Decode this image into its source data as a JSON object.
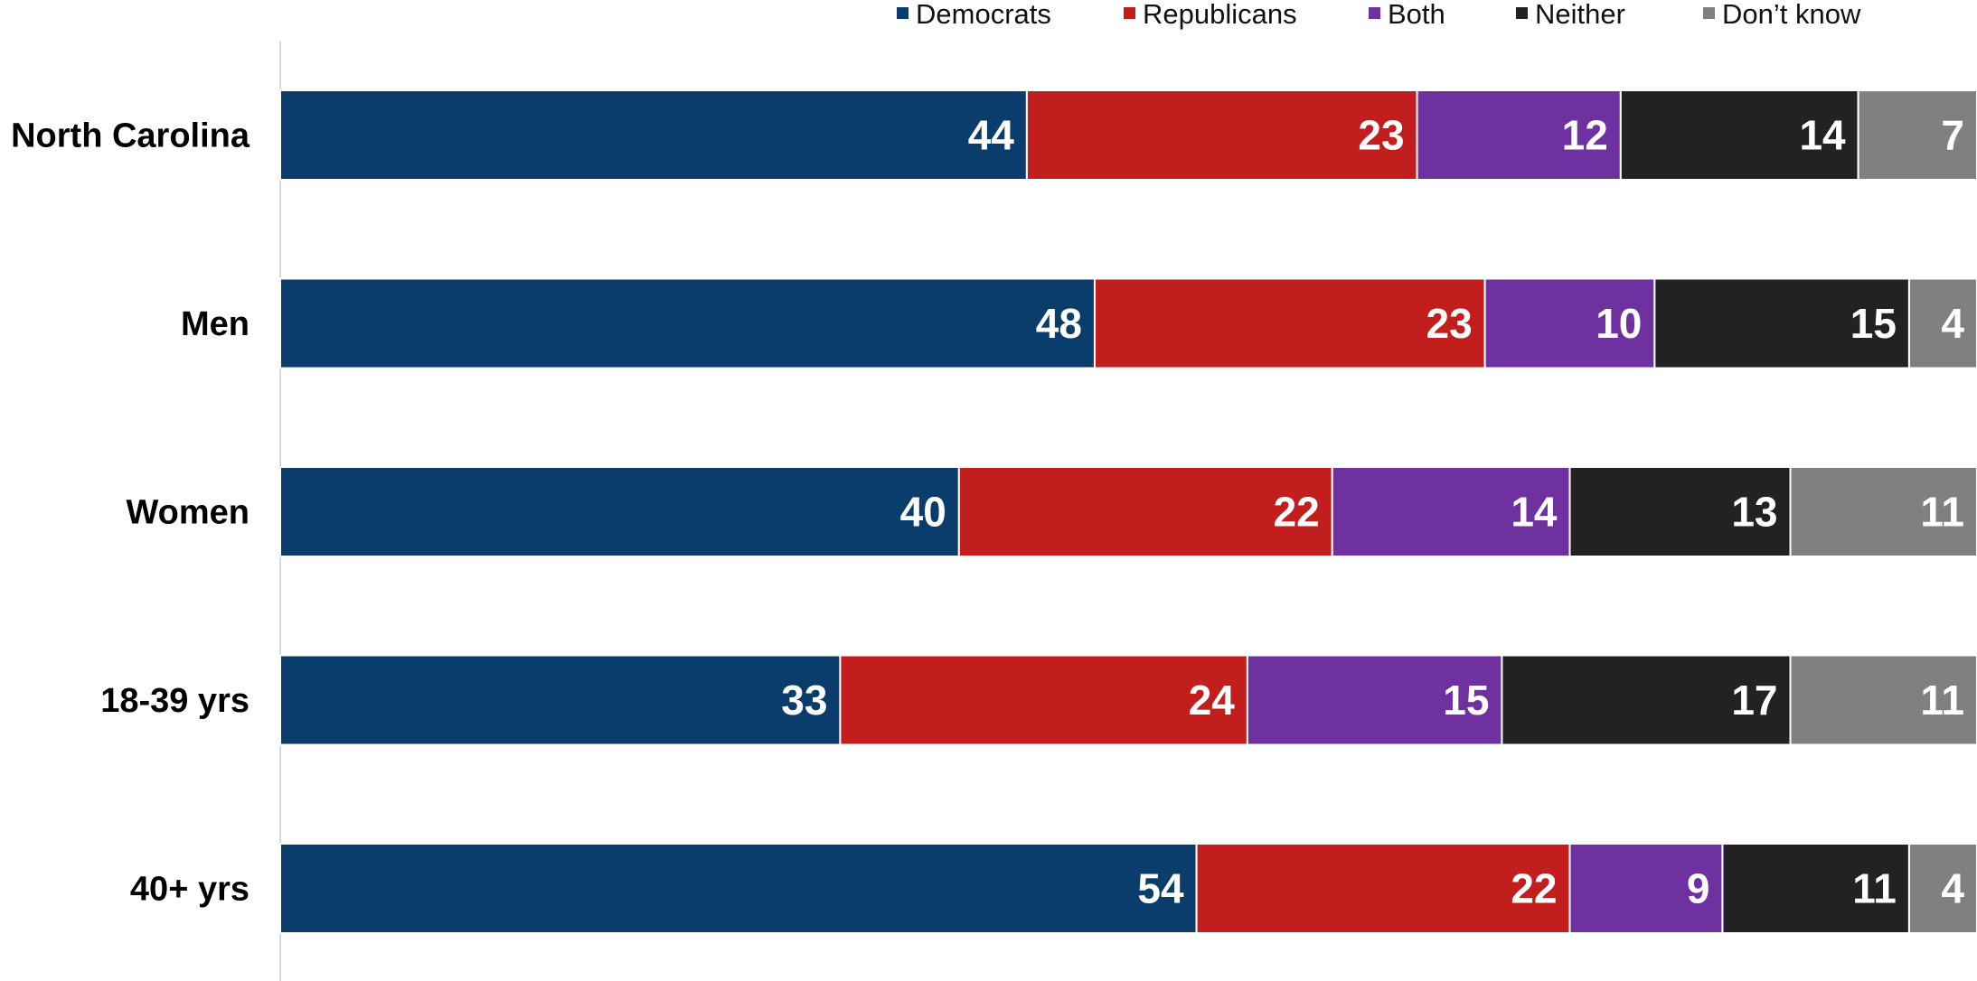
{
  "chart_data": {
    "type": "bar",
    "orientation": "horizontal",
    "stacked": true,
    "categories": [
      "North Carolina",
      "Men",
      "Women",
      "18-39 yrs",
      "40+ yrs"
    ],
    "series": [
      {
        "name": "Democrats",
        "color": "#0a3d6b",
        "values": [
          44,
          48,
          40,
          33,
          54
        ]
      },
      {
        "name": "Republicans",
        "color": "#c21e1e",
        "values": [
          23,
          23,
          22,
          24,
          22
        ]
      },
      {
        "name": "Both",
        "color": "#6f31a0",
        "values": [
          12,
          10,
          14,
          15,
          9
        ]
      },
      {
        "name": "Neither",
        "color": "#222222",
        "values": [
          14,
          15,
          13,
          17,
          11
        ]
      },
      {
        "name": "Don’t know",
        "color": "#808080",
        "values": [
          7,
          4,
          11,
          11,
          4
        ]
      }
    ],
    "xlim": [
      0,
      100
    ],
    "grid": false,
    "legend_position": "top-right",
    "data_labels": true
  }
}
